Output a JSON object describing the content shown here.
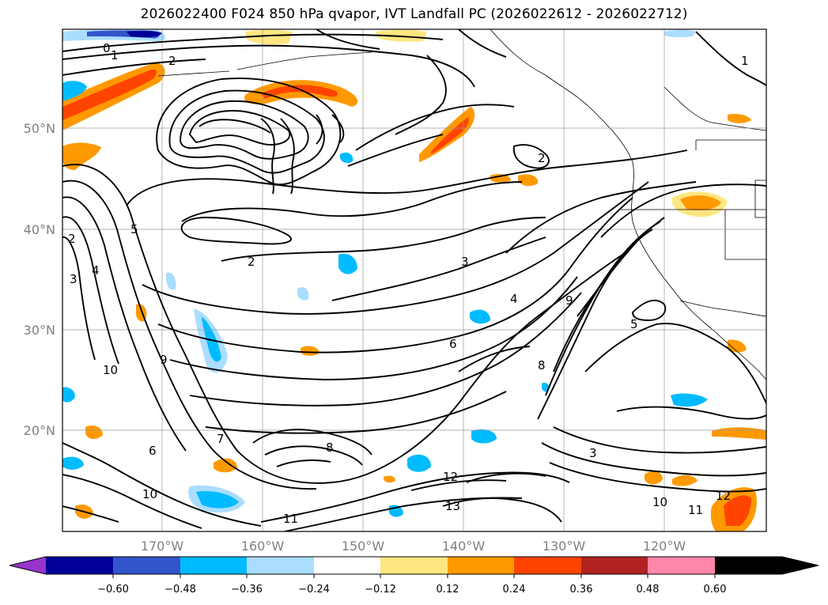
{
  "title": "2026022400 F024 850 hPa qvapor, IVT Landfall PC (2026022612 - 2026022712)",
  "map": {
    "lat_labels": [
      "50°N",
      "40°N",
      "30°N",
      "20°N"
    ],
    "lon_labels": [
      "170°W",
      "160°W",
      "150°W",
      "140°W",
      "130°W",
      "120°W"
    ],
    "contour_labels": [
      "0",
      "1",
      "2",
      "2",
      "2",
      "3",
      "3",
      "4",
      "5",
      "6",
      "7",
      "8",
      "9",
      "10",
      "10",
      "11",
      "12",
      "13",
      "1",
      "2",
      "3",
      "4",
      "5",
      "6",
      "8",
      "9",
      "10",
      "11",
      "12"
    ]
  },
  "colorbar": {
    "ticks": [
      "−0.60",
      "−0.48",
      "−0.36",
      "−0.24",
      "−0.12",
      "0.12",
      "0.24",
      "0.36",
      "0.48",
      "0.60"
    ],
    "colors": [
      "#9933cc",
      "#000099",
      "#3355cc",
      "#00bbff",
      "#aaddff",
      "#ffffff",
      "#ffe680",
      "#ff9900",
      "#ff4400",
      "#b22222",
      "#ff88aa"
    ]
  }
}
